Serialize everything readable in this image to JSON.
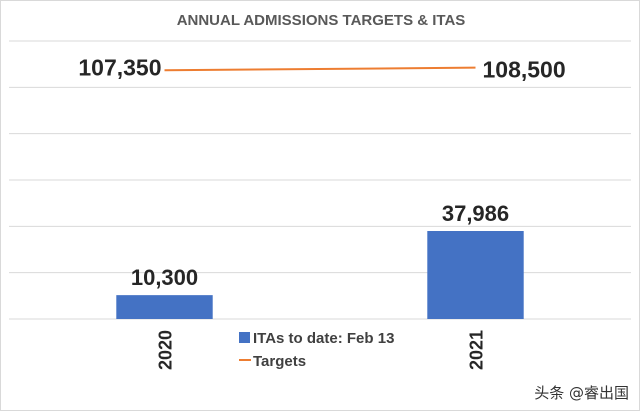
{
  "chart_data": {
    "type": "bar",
    "title": "ANNUAL ADMISSIONS TARGETS & ITAS",
    "categories": [
      "2020",
      "2021"
    ],
    "ylim": [
      0,
      120000
    ],
    "grid": true,
    "series": [
      {
        "name": "ITAs to date: Feb 13",
        "type": "bar",
        "color": "#4472C4",
        "values": [
          10300,
          37986
        ],
        "labels": [
          "10,300",
          "37,986"
        ]
      },
      {
        "name": "Targets",
        "type": "line",
        "color": "#ED7D31",
        "values": [
          107350,
          108500
        ],
        "labels": [
          "107,350",
          "108,500"
        ]
      }
    ],
    "legend": "bottom-center"
  },
  "watermark": "头条 @睿出国"
}
